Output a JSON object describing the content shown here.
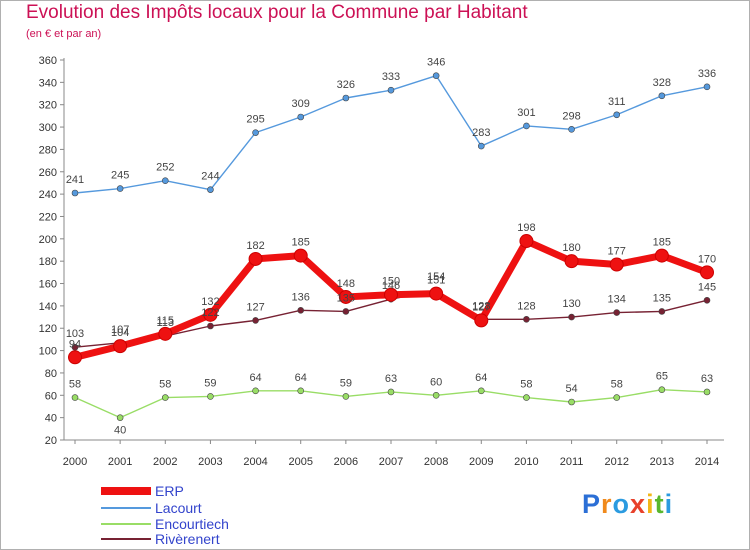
{
  "header": {
    "title": "Evolution des Impôts locaux pour la Commune par Habitant",
    "subtitle": "(en € et par an)"
  },
  "logo": {
    "letters": [
      "P",
      "r",
      "o",
      "x",
      "i",
      "t",
      "i"
    ],
    "colors": [
      "#2b6fd6",
      "#f08a1c",
      "#2b9be0",
      "#e8412b",
      "#f2b718",
      "#59b72e",
      "#2b9be0"
    ]
  },
  "chart_data": {
    "type": "line",
    "title": "Evolution des Impôts locaux pour la Commune par Habitant",
    "subtitle": "(en € et par an)",
    "x": [
      2000,
      2001,
      2002,
      2003,
      2004,
      2005,
      2006,
      2007,
      2008,
      2009,
      2010,
      2011,
      2012,
      2013,
      2014
    ],
    "ylim": [
      20,
      360
    ],
    "yticks": [
      20,
      40,
      60,
      80,
      100,
      120,
      140,
      160,
      180,
      200,
      220,
      240,
      260,
      280,
      300,
      320,
      340,
      360
    ],
    "grid": false,
    "legend_position": "bottom-left",
    "series": [
      {
        "name": "ERP",
        "color": "#ee1111",
        "values": [
          94,
          104,
          115,
          132,
          182,
          185,
          148,
          150,
          151,
          127,
          198,
          180,
          177,
          185,
          170
        ]
      },
      {
        "name": "Lacourt",
        "color": "#5599dd",
        "values": [
          241,
          245,
          252,
          244,
          295,
          309,
          326,
          333,
          346,
          283,
          301,
          298,
          311,
          328,
          336
        ]
      },
      {
        "name": "Encourtiech",
        "color": "#99dd66",
        "values": [
          58,
          40,
          58,
          59,
          64,
          64,
          59,
          63,
          60,
          64,
          58,
          54,
          58,
          65,
          63
        ]
      },
      {
        "name": "Rivèrenert",
        "color": "#772233",
        "values": [
          103,
          107,
          113,
          122,
          127,
          136,
          135,
          146,
          154,
          128,
          128,
          130,
          134,
          135,
          145
        ]
      }
    ]
  }
}
